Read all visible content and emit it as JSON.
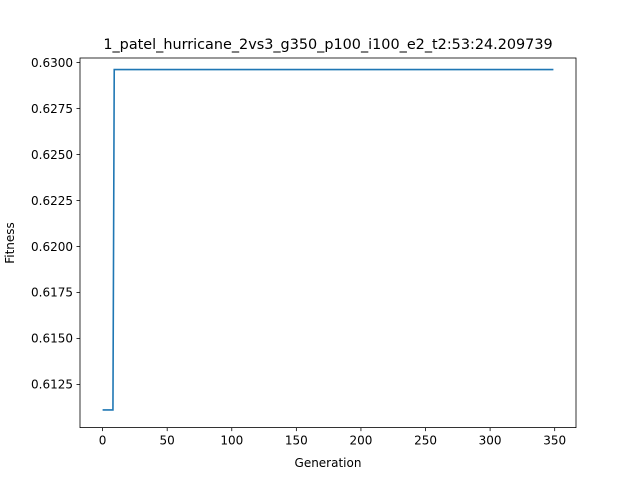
{
  "chart_data": {
    "type": "line",
    "title": "1_patel_hurricane_2vs3_g350_p100_i100_e2_t2:53:24.209739",
    "xlabel": "Generation",
    "ylabel": "Fitness",
    "xlim": [
      -17.5,
      366.5
    ],
    "ylim": [
      0.61015,
      0.63025
    ],
    "xticks": [
      0,
      50,
      100,
      150,
      200,
      250,
      300,
      350
    ],
    "yticks": [
      0.6125,
      0.615,
      0.6175,
      0.62,
      0.6225,
      0.625,
      0.6275,
      0.63
    ],
    "ytick_labels": [
      "0.6125",
      "0.6150",
      "0.6175",
      "0.6200",
      "0.6225",
      "0.6250",
      "0.6275",
      "0.6300"
    ],
    "grid": false,
    "series": [
      {
        "color": "#1f77b4",
        "x": [
          0,
          8,
          9,
          349
        ],
        "y": [
          0.61111,
          0.61111,
          0.62962,
          0.62962
        ]
      }
    ]
  }
}
